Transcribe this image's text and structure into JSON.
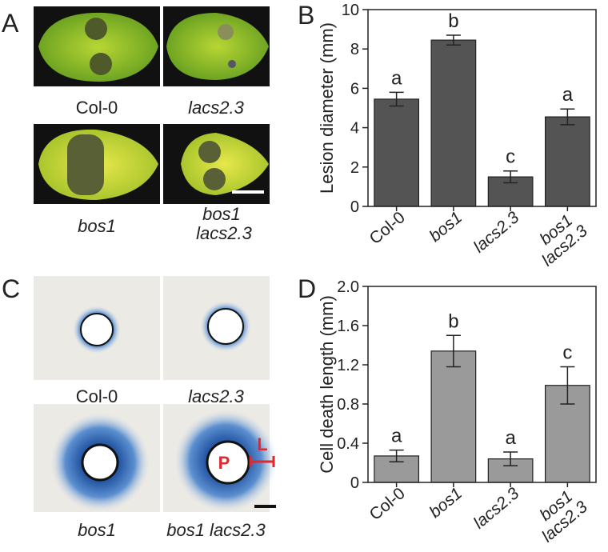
{
  "panel_labels": [
    "A",
    "B",
    "C",
    "D"
  ],
  "photo_captions_a": [
    "Col-0",
    "lacs2.3",
    "bos1",
    "bos1 lacs2.3"
  ],
  "photo_captions_c": [
    "Col-0",
    "lacs2.3",
    "bos1",
    "bos1 lacs2.3"
  ],
  "annotations_c": [
    "P",
    "L"
  ],
  "chart_data": [
    {
      "type": "bar",
      "y_label": "Lesion diameter (mm)",
      "categories": [
        "Col-0",
        "bos1",
        "lacs2.3",
        "bos1 lacs2.3"
      ],
      "values": [
        5.45,
        8.45,
        1.5,
        4.55
      ],
      "errors": [
        0.35,
        0.25,
        0.3,
        0.4
      ],
      "letters": [
        "a",
        "b",
        "c",
        "a"
      ],
      "color": "#545454",
      "ylim": [
        0,
        10
      ],
      "yticks": [
        0,
        2,
        4,
        6,
        8,
        10
      ]
    },
    {
      "type": "bar",
      "y_label": "Cell death length (mm)",
      "categories": [
        "Col-0",
        "bos1",
        "lacs2.3",
        "bos1 lacs2.3"
      ],
      "values": [
        0.27,
        1.34,
        0.24,
        0.99
      ],
      "errors": [
        0.06,
        0.16,
        0.07,
        0.19
      ],
      "letters": [
        "a",
        "b",
        "a",
        "c"
      ],
      "color": "#9a9a9a",
      "ylim": [
        0,
        2
      ],
      "yticks": [
        0,
        0.4,
        0.8,
        1.2,
        1.6,
        {
          "value": 2,
          "label": "2.0"
        }
      ]
    }
  ]
}
